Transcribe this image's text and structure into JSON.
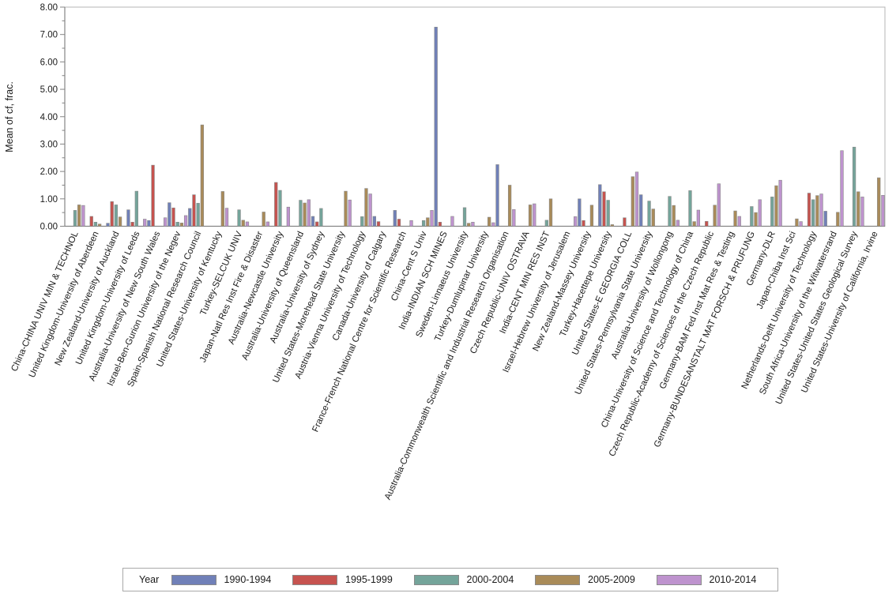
{
  "chart_data": {
    "type": "bar",
    "title": "",
    "ylabel": "Mean of cf, frac.",
    "xlabel": "",
    "ylim": [
      0,
      8
    ],
    "ytick_step": 1,
    "ytick_minor_step": 0.5,
    "ytick_decimals": 2,
    "grid": false,
    "legend_title": "Year",
    "legend_position": "bottom",
    "axis_color": "#858585",
    "frame_color": "#b5b5b5",
    "bar_outline_color": "#8a8a8a",
    "categories": [
      "China-CHINA UNIV MIN & TECHNOL",
      "United Kingdom-University of Aberdeen",
      "New Zealand-University of Auckland",
      "United Kingdom-University of Leeds",
      "Australia-University of New South Wales",
      "Israel-Ben-Gurion University of the Negev",
      "Spain-Spanish National Research Council",
      "United States-University of Kentucky",
      "Turkey-SELCUK UNIV",
      "Japan-Natl Res Inst Fire & Disaster",
      "Australia-Newcastle University",
      "Australia-University of Queensland",
      "Australia-University of Sydney",
      "United States-Morehead State University",
      "Austria-Vienna University of Technology",
      "Canada-University of Calgary",
      "France-French National Centre for Scientific Research",
      "China-Cent S Univ",
      "India-INDIAN SCH MINES",
      "Sweden-Linnaeus University",
      "Turkey-Dumlupinar University",
      "Australia-Commonwealth Scientific and Industrial Research Organisation",
      "Czech Republic-UNIV OSTRAVA",
      "India-CENT MIN RES INST",
      "Israel-Hebrew University of Jerusalem",
      "New Zealand-Massey University",
      "Turkey-Hacettepe University",
      "United States-E GEORGIA COLL",
      "United States-Pennsylvania State University",
      "Australia-University of Wollongong",
      "China-University of Science and Technology of China",
      "Czech Republic-Academy of Sciences of the Czech Republic",
      "Germany-BAM Fed Inst Mat Res & Testing",
      "Germany-BUNDESANSTALT MAT FORSCH & PRUFUNG",
      "Germany-DLR",
      "Japan-Chiba Inst Sci",
      "Netherlands-Delft University of Technology",
      "South Africa-University of the Witwatersrand",
      "United States-United States Geological Survey",
      "United States-University of California, Irvine"
    ],
    "series": [
      {
        "name": "1990-1994",
        "color": "#7080B8",
        "values": [
          null,
          null,
          0.11,
          0.6,
          0.21,
          0.86,
          0.65,
          null,
          null,
          null,
          null,
          null,
          0.36,
          null,
          null,
          0.36,
          0.58,
          null,
          7.27,
          null,
          null,
          2.25,
          null,
          null,
          null,
          1.0,
          1.52,
          null,
          1.15,
          null,
          null,
          null,
          null,
          null,
          null,
          null,
          null,
          0.55,
          null,
          null
        ]
      },
      {
        "name": "1995-1999",
        "color": "#C6534F",
        "values": [
          null,
          0.36,
          0.9,
          0.15,
          2.23,
          0.67,
          1.15,
          null,
          null,
          null,
          1.6,
          null,
          0.16,
          null,
          null,
          0.17,
          0.26,
          null,
          0.15,
          null,
          null,
          null,
          null,
          null,
          null,
          0.21,
          1.26,
          0.31,
          null,
          null,
          null,
          0.18,
          null,
          null,
          null,
          null,
          1.21,
          null,
          null,
          null
        ]
      },
      {
        "name": "2000-2004",
        "color": "#74A49A",
        "values": [
          0.58,
          0.15,
          0.78,
          1.28,
          null,
          0.15,
          0.84,
          null,
          0.6,
          null,
          1.31,
          0.95,
          0.65,
          null,
          0.35,
          null,
          null,
          0.21,
          null,
          0.68,
          null,
          null,
          null,
          0.22,
          null,
          null,
          0.95,
          null,
          0.92,
          1.09,
          1.3,
          null,
          null,
          0.72,
          1.07,
          null,
          0.97,
          null,
          2.89,
          null
        ]
      },
      {
        "name": "2005-2009",
        "color": "#A98B59",
        "values": [
          0.78,
          0.08,
          0.34,
          null,
          null,
          0.12,
          3.7,
          1.27,
          0.22,
          0.52,
          null,
          0.85,
          null,
          1.28,
          1.38,
          null,
          null,
          0.31,
          null,
          0.11,
          0.33,
          1.5,
          0.78,
          1.0,
          null,
          0.77,
          0.06,
          1.81,
          0.63,
          0.76,
          0.17,
          0.77,
          0.56,
          0.5,
          1.48,
          0.27,
          1.12,
          0.51,
          1.26,
          1.77
        ]
      },
      {
        "name": "2010-2014",
        "color": "#BE93CE",
        "values": [
          0.76,
          null,
          null,
          0.26,
          0.31,
          0.39,
          null,
          0.66,
          0.16,
          0.16,
          0.7,
          0.97,
          null,
          0.96,
          1.18,
          null,
          0.21,
          0.58,
          0.36,
          0.15,
          0.13,
          0.61,
          0.82,
          null,
          0.35,
          null,
          null,
          1.98,
          null,
          0.22,
          0.59,
          1.55,
          0.36,
          0.97,
          1.68,
          0.17,
          1.18,
          2.76,
          1.07,
          1.13
        ]
      }
    ]
  }
}
